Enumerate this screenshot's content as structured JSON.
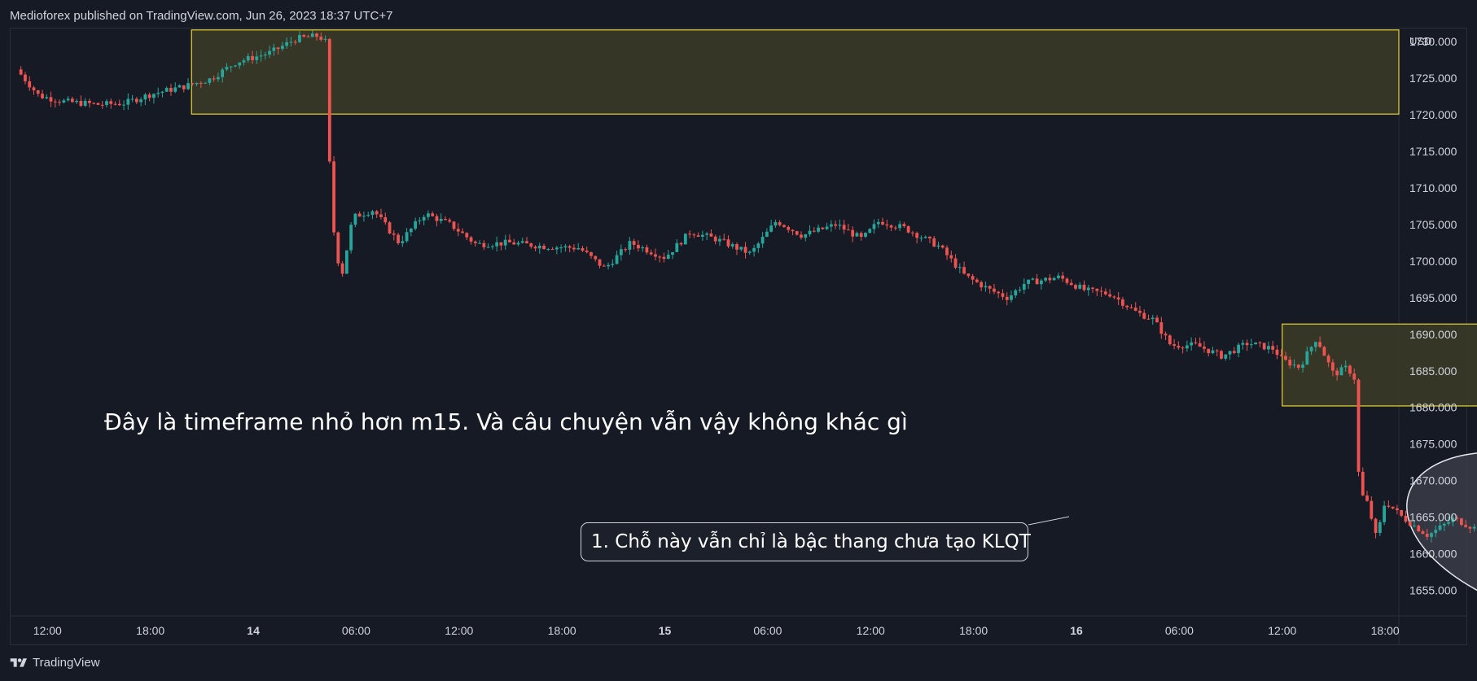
{
  "header": {
    "published_by": "Medioforex published on TradingView.com, Jun 26, 2023 18:37 UTC+7"
  },
  "footer": {
    "brand": "TradingView"
  },
  "colors": {
    "background": "#161a25",
    "up_candle": "#26a69a",
    "down_candle": "#ef5350",
    "zone_fill": "#3a3a28",
    "zone_border": "#e8d335",
    "ellipse_fill": "#3a3d46",
    "text": "#d1d4dc"
  },
  "icons": {
    "logo": "tradingview-logo-icon"
  },
  "annotations": {
    "main_text": "Đây là timeframe nhỏ hơn m15. Và câu chuyện vẫn vậy không khác gì",
    "callout_text": "1. Chỗ này vẫn chỉ là bậc thang chưa tạo KLQT"
  },
  "chart_data": {
    "type": "candlestick",
    "currency": "USD",
    "y_ticks": [
      "1730.000",
      "1725.000",
      "1720.000",
      "1715.000",
      "1710.000",
      "1705.000",
      "1700.000",
      "1695.000",
      "1690.000",
      "1685.000",
      "1680.000",
      "1675.000",
      "1670.000",
      "1665.000",
      "1660.000",
      "1655.000"
    ],
    "x_ticks": [
      "12:00",
      "18:00",
      "14",
      "06:00",
      "12:00",
      "18:00",
      "15",
      "06:00",
      "12:00",
      "18:00",
      "16",
      "06:00",
      "12:00",
      "18:00"
    ],
    "bold_ticks": [
      "14",
      "15",
      "16"
    ],
    "ylim": [
      1651.5,
      1731.8
    ],
    "xlim_hours": [
      -14.2,
      66.8
    ],
    "x_unit": "hours from 13 00:00",
    "price_path": [
      [
        -13.8,
        1726.2
      ],
      [
        -12.5,
        1722.6
      ],
      [
        -11,
        1721.8
      ],
      [
        -9,
        1721.4
      ],
      [
        -7.5,
        1721.6
      ],
      [
        -6,
        1722.8
      ],
      [
        -4,
        1723.9
      ],
      [
        -2.5,
        1724.9
      ],
      [
        -1,
        1727.2
      ],
      [
        1,
        1728.5
      ],
      [
        2.5,
        1730.4
      ],
      [
        3.8,
        1730.8
      ],
      [
        4.2,
        1730.0
      ],
      [
        4.5,
        1710.0
      ],
      [
        4.8,
        1701.0
      ],
      [
        5.2,
        1698.5
      ],
      [
        5.8,
        1706.0
      ],
      [
        7,
        1707.0
      ],
      [
        8.5,
        1702.5
      ],
      [
        10,
        1706.5
      ],
      [
        11.5,
        1705.0
      ],
      [
        13,
        1702.3
      ],
      [
        15,
        1702.5
      ],
      [
        17,
        1702.0
      ],
      [
        19,
        1701.8
      ],
      [
        20.5,
        1699.0
      ],
      [
        22,
        1702.5
      ],
      [
        24,
        1700.5
      ],
      [
        25.5,
        1704.0
      ],
      [
        27,
        1703.0
      ],
      [
        29,
        1701.0
      ],
      [
        30.5,
        1705.5
      ],
      [
        32,
        1703.5
      ],
      [
        34,
        1705.0
      ],
      [
        35.5,
        1703.0
      ],
      [
        36.5,
        1705.5
      ],
      [
        38,
        1704.5
      ],
      [
        40,
        1702.0
      ],
      [
        41.5,
        1698.0
      ],
      [
        43,
        1696.0
      ],
      [
        44,
        1695.0
      ],
      [
        45,
        1697.0
      ],
      [
        47,
        1697.8
      ],
      [
        48.5,
        1696.0
      ],
      [
        50,
        1695.5
      ],
      [
        51.5,
        1693.0
      ],
      [
        52.5,
        1692.0
      ],
      [
        53.5,
        1688.5
      ],
      [
        55,
        1688.5
      ],
      [
        56.5,
        1687.0
      ],
      [
        58,
        1688.8
      ],
      [
        59.5,
        1688.0
      ],
      [
        60,
        1686.5
      ],
      [
        61,
        1685.5
      ],
      [
        62,
        1689.5
      ],
      [
        63,
        1684.5
      ],
      [
        63.8,
        1685.5
      ],
      [
        64.2,
        1684.0
      ],
      [
        64.5,
        1668.5
      ],
      [
        65,
        1666.8
      ],
      [
        65.5,
        1662.0
      ],
      [
        66,
        1667.2
      ],
      [
        67,
        1665.0
      ],
      [
        68.5,
        1662.5
      ],
      [
        70,
        1664.8
      ],
      [
        71.5,
        1663.2
      ],
      [
        73,
        1662.5
      ],
      [
        74,
        1664.5
      ],
      [
        75,
        1666.0
      ],
      [
        76,
        1663.0
      ],
      [
        77.5,
        1663.5
      ],
      [
        79,
        1664.8
      ],
      [
        80.5,
        1663.5
      ],
      [
        82,
        1661.0
      ],
      [
        83,
        1658.0
      ],
      [
        84,
        1656.0
      ],
      [
        85,
        1661.0
      ],
      [
        85.5,
        1663.5
      ],
      [
        86,
        1660.0
      ]
    ],
    "zones": [
      {
        "name": "upper-supply-zone",
        "x_start": -3.6,
        "x_end": 66.8,
        "y_low": 1720.1,
        "y_high": 1731.6
      },
      {
        "name": "lower-supply-zone",
        "x_start": 60.0,
        "x_end": 78.9,
        "y_low": 1680.2,
        "y_high": 1691.4
      }
    ],
    "ellipse": {
      "cx": 75.5,
      "cy": 1662.3,
      "rx_hours": 8.5,
      "ry_price": 10.5,
      "tilt_deg": 17
    }
  }
}
